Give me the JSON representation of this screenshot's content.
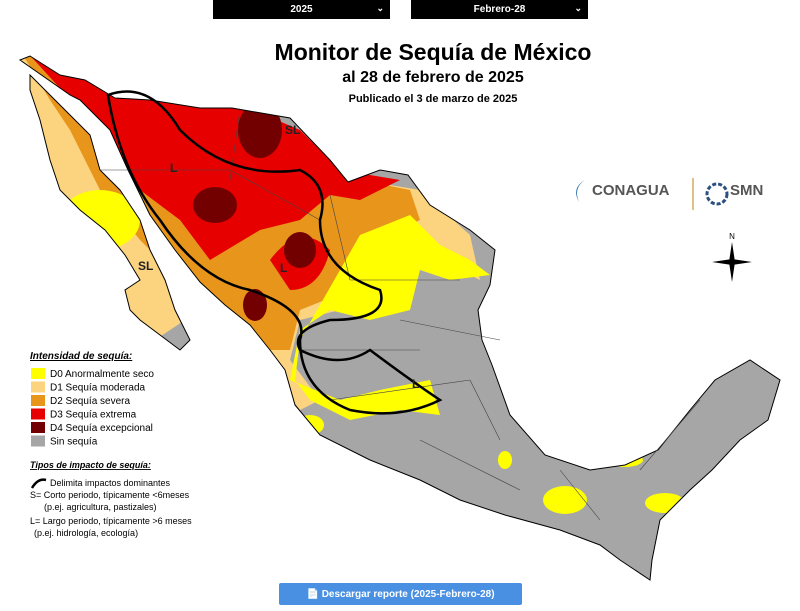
{
  "controls": {
    "year": "2025",
    "date": "Febrero-28"
  },
  "map": {
    "title": "Monitor de Sequía de México",
    "subtitle": "al 28 de febrero de 2025",
    "published": "Publicado el 3 de marzo de 2025",
    "region_labels": [
      "SL",
      "L",
      "L",
      "SL",
      "L"
    ],
    "compass": "N",
    "logos": [
      "CONAGUA",
      "SMN"
    ]
  },
  "legend": {
    "title": "Intensidad de sequía:",
    "items": [
      {
        "label": "D0 Anormalmente seco",
        "color": "#ffff00"
      },
      {
        "label": "D1 Sequía moderada",
        "color": "#fcd37f"
      },
      {
        "label": "D2 Sequía severa",
        "color": "#e8951c"
      },
      {
        "label": "D3 Sequía extrema",
        "color": "#e60000"
      },
      {
        "label": "D4 Sequía excepcional",
        "color": "#730000"
      },
      {
        "label": "Sin sequía",
        "color": "#a6a6a6"
      }
    ],
    "impact_title": "Tipos de impacto de sequía:",
    "impact_items": [
      "Delimita impactos dominantes",
      "S= Corto periodo, típicamente <6meses",
      "(p.ej. agricultura, pastizales)",
      "L= Largo periodo, típicamente >6 meses",
      "(p.ej. hidrología, ecología)"
    ]
  },
  "button": "Descargar reporte (2025-Febrero-28)"
}
